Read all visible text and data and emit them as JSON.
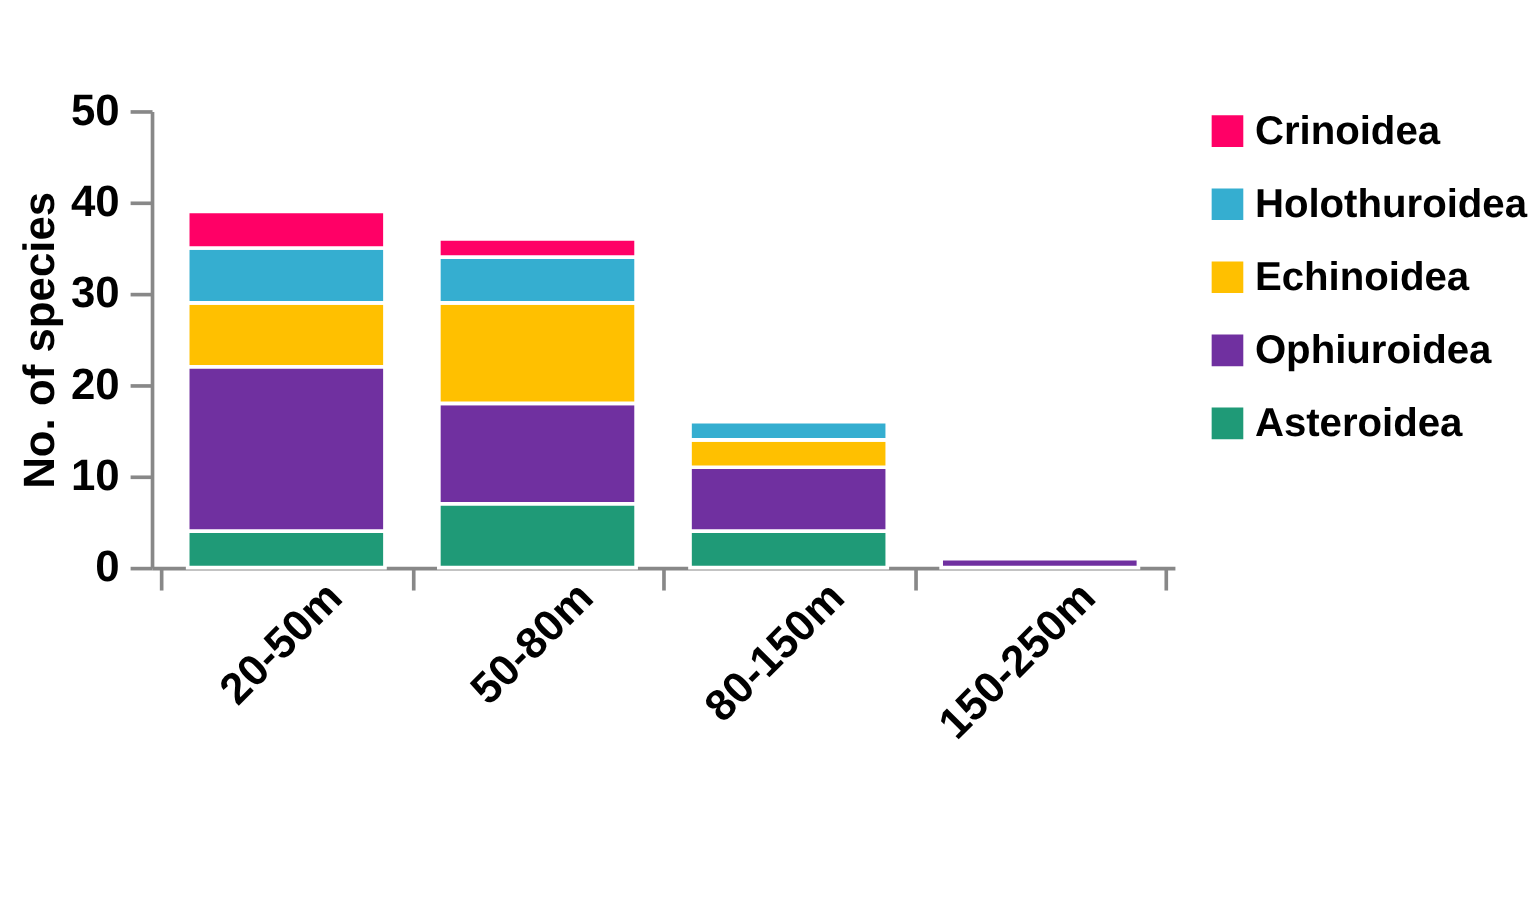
{
  "chart_data": {
    "type": "bar",
    "stacked": true,
    "ylabel": "No. of species",
    "categories": [
      "20-50m",
      "50-80m",
      "80-150m",
      "150-250m"
    ],
    "series": [
      {
        "name": "Asteroidea",
        "color": "#1f9a77",
        "values": [
          4,
          7,
          4,
          0
        ]
      },
      {
        "name": "Ophiuroidea",
        "color": "#7030a0",
        "values": [
          18,
          11,
          7,
          1
        ]
      },
      {
        "name": "Echinoidea",
        "color": "#ffc000",
        "values": [
          7,
          11,
          3,
          0
        ]
      },
      {
        "name": "Holothuroidea",
        "color": "#35aed0",
        "values": [
          6,
          5,
          2,
          0
        ]
      },
      {
        "name": "Crinoidea",
        "color": "#ff0066",
        "values": [
          4,
          2,
          0,
          0
        ]
      }
    ],
    "ylim": [
      0,
      50
    ],
    "yticks": [
      0,
      10,
      20,
      30,
      40,
      50
    ],
    "grid": false,
    "legend": "right"
  }
}
